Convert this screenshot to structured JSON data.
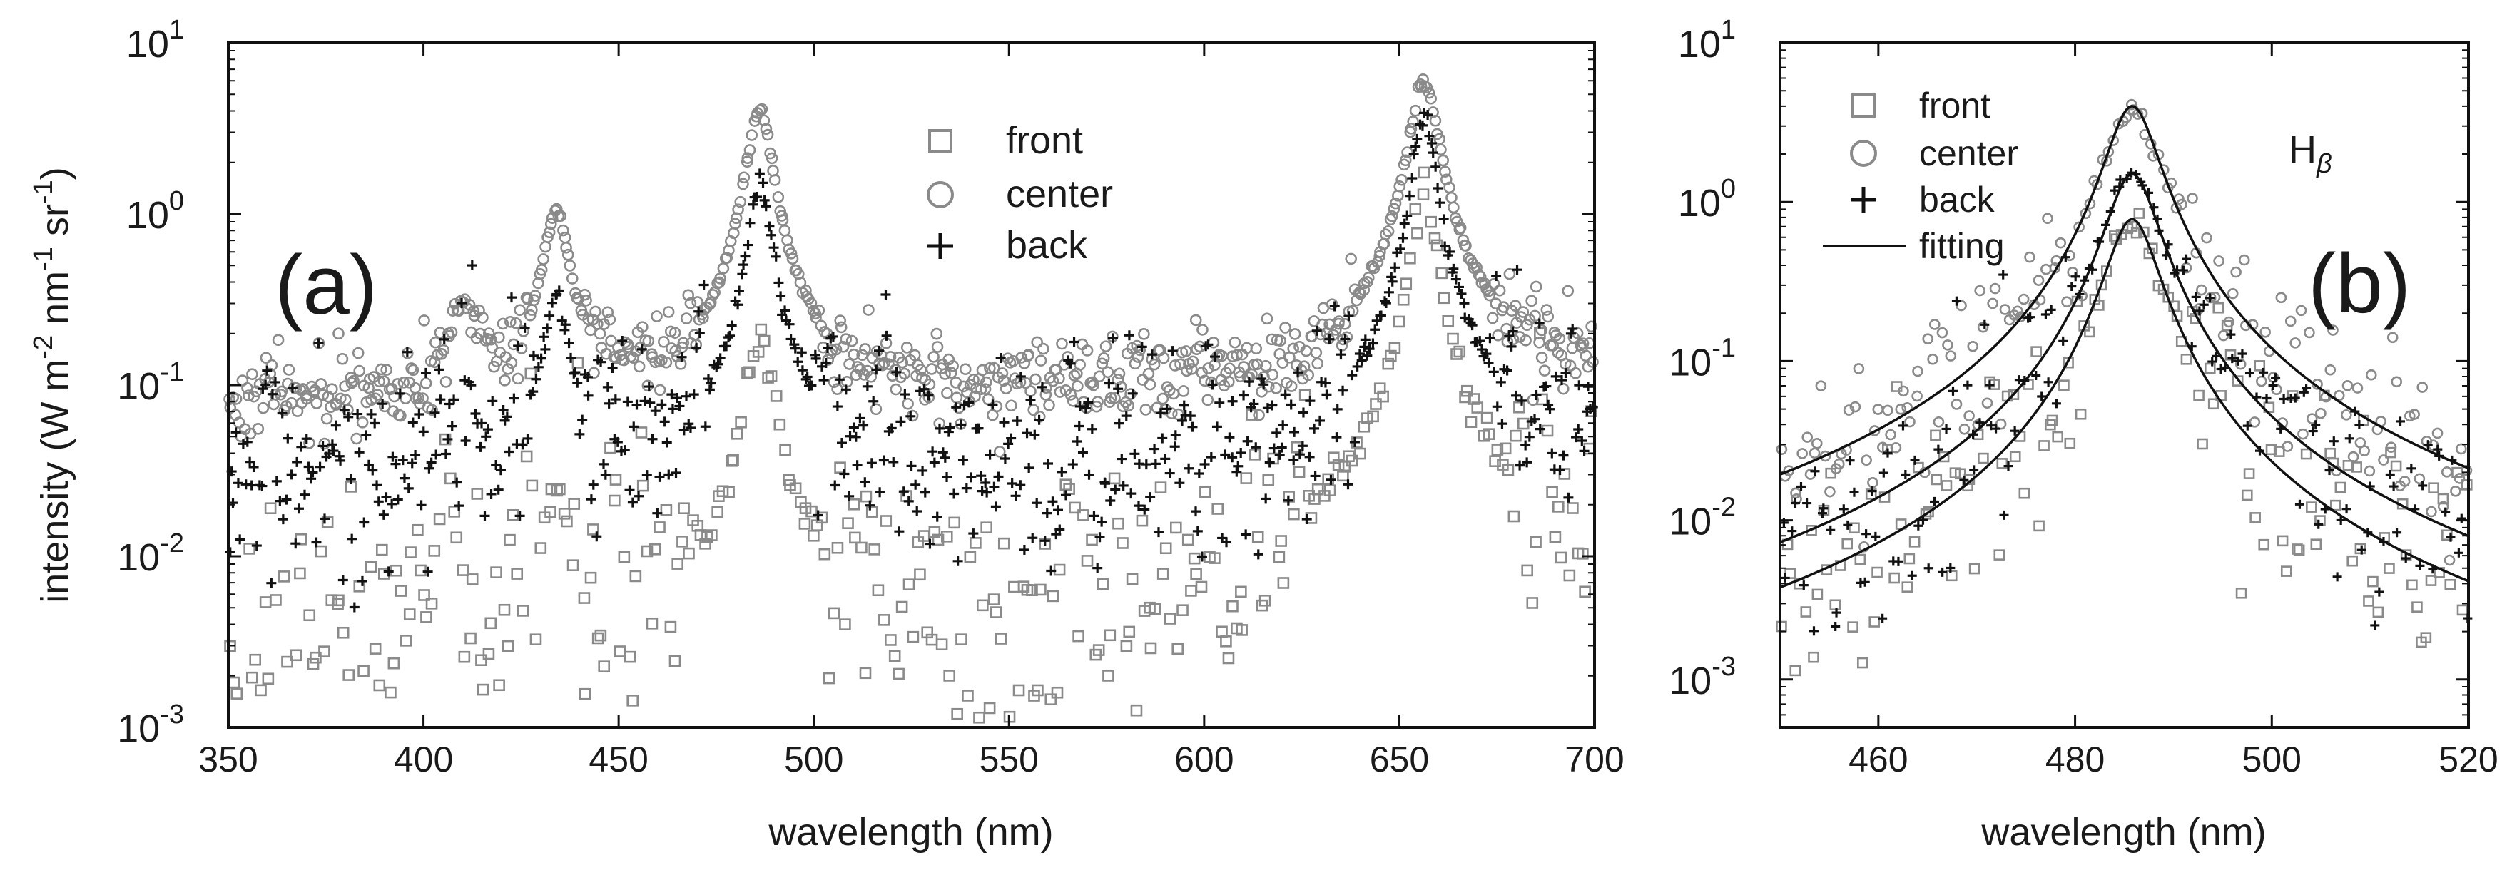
{
  "colors": {
    "front": "#8a8a8a",
    "center": "#8a8a8a",
    "back": "#111111",
    "fitting": "#111111",
    "frame": "#111111"
  },
  "chart_data": [
    {
      "id": "a",
      "type": "scatter",
      "panel_label": "(a)",
      "xlabel": "wavelength (nm)",
      "ylabel": {
        "main": "intensity (W m",
        "exp1": "-2",
        "part2": " nm",
        "exp2": "-1",
        "part3": " sr",
        "exp3": "-1",
        "close": ")"
      },
      "xlim": [
        350,
        700
      ],
      "ylim": [
        0.001,
        10
      ],
      "yscale": "log",
      "x_ticks": [
        350,
        400,
        450,
        500,
        550,
        600,
        650,
        700
      ],
      "x_tick_labels": [
        "350",
        "400",
        "450",
        "500",
        "550",
        "600",
        "650",
        "700"
      ],
      "y_ticks": [
        {
          "value": 10,
          "base": "10",
          "exp": "1"
        },
        {
          "value": 1,
          "base": "10",
          "exp": "0"
        },
        {
          "value": 0.1,
          "base": "10",
          "exp": "-1"
        },
        {
          "value": 0.01,
          "base": "10",
          "exp": "-2"
        },
        {
          "value": 0.001,
          "base": "10",
          "exp": "-3"
        }
      ],
      "legend_position": "top-center",
      "series": [
        {
          "name": "front",
          "marker": "square",
          "baseline": 0.004,
          "scatter_decades": 0.45,
          "n_points": 360,
          "peaks": [
            {
              "center": 410.2,
              "height": 0.006,
              "width": 4
            },
            {
              "center": 434.0,
              "height": 0.02,
              "width": 3
            },
            {
              "center": 486.1,
              "height": 0.2,
              "width": 3
            },
            {
              "center": 656.3,
              "height": 1.4,
              "width": 2.8
            }
          ],
          "floor_rise": {
            "start": 600,
            "end": 700,
            "to": 0.012
          }
        },
        {
          "name": "center",
          "marker": "circle",
          "baseline": 0.085,
          "scatter_decades": 0.12,
          "n_points": 700,
          "peaks": [
            {
              "center": 410.2,
              "height": 0.2,
              "width": 3.2
            },
            {
              "center": 434.0,
              "height": 0.95,
              "width": 3.0
            },
            {
              "center": 486.1,
              "height": 4.1,
              "width": 3.0
            },
            {
              "center": 656.3,
              "height": 5.8,
              "width": 3.4
            }
          ],
          "floor_rise": {
            "start": 550,
            "end": 700,
            "to": 0.12
          }
        },
        {
          "name": "back",
          "marker": "plus",
          "baseline": 0.032,
          "scatter_decades": 0.3,
          "n_points": 600,
          "peaks": [
            {
              "center": 410.2,
              "height": 0.05,
              "width": 3.0
            },
            {
              "center": 434.0,
              "height": 0.3,
              "width": 2.8
            },
            {
              "center": 486.1,
              "height": 1.5,
              "width": 2.8
            },
            {
              "center": 656.3,
              "height": 4.0,
              "width": 2.6
            }
          ],
          "floor_rise": {
            "start": 560,
            "end": 700,
            "to": 0.055
          }
        }
      ]
    },
    {
      "id": "b",
      "type": "scatter",
      "panel_label": "(b)",
      "annotation": {
        "base": "H",
        "sub": "β"
      },
      "xlabel": "wavelength (nm)",
      "xlim": [
        450,
        520
      ],
      "ylim": [
        0.0005,
        10
      ],
      "yscale": "log",
      "x_ticks": [
        460,
        480,
        500,
        520
      ],
      "x_tick_labels": [
        "460",
        "480",
        "500",
        "520"
      ],
      "y_ticks": [
        {
          "value": 10,
          "base": "10",
          "exp": "1"
        },
        {
          "value": 1,
          "base": "10",
          "exp": "0"
        },
        {
          "value": 0.1,
          "base": "10",
          "exp": "-1"
        },
        {
          "value": 0.01,
          "base": "10",
          "exp": "-2"
        },
        {
          "value": 0.001,
          "base": "10",
          "exp": "-3"
        }
      ],
      "legend_position": "top-left",
      "series": [
        {
          "name": "front",
          "marker": "square",
          "center": 485.8,
          "peak": 0.78,
          "gamma": 2.5,
          "scatter_decades": 0.35,
          "n_points": 150
        },
        {
          "name": "center",
          "marker": "circle",
          "center": 485.8,
          "peak": 4.0,
          "gamma": 2.5,
          "scatter_decades": 0.25,
          "n_points": 170
        },
        {
          "name": "back",
          "marker": "plus",
          "center": 485.8,
          "peak": 1.5,
          "gamma": 2.5,
          "scatter_decades": 0.3,
          "n_points": 160
        },
        {
          "name": "fitting",
          "marker": "line",
          "curves": [
            {
              "for": "center",
              "center": 485.8,
              "peak": 4.0,
              "gamma": 2.5
            },
            {
              "for": "back",
              "center": 485.8,
              "peak": 1.5,
              "gamma": 2.5
            },
            {
              "for": "front",
              "center": 485.8,
              "peak": 0.78,
              "gamma": 2.5
            }
          ]
        }
      ]
    }
  ]
}
